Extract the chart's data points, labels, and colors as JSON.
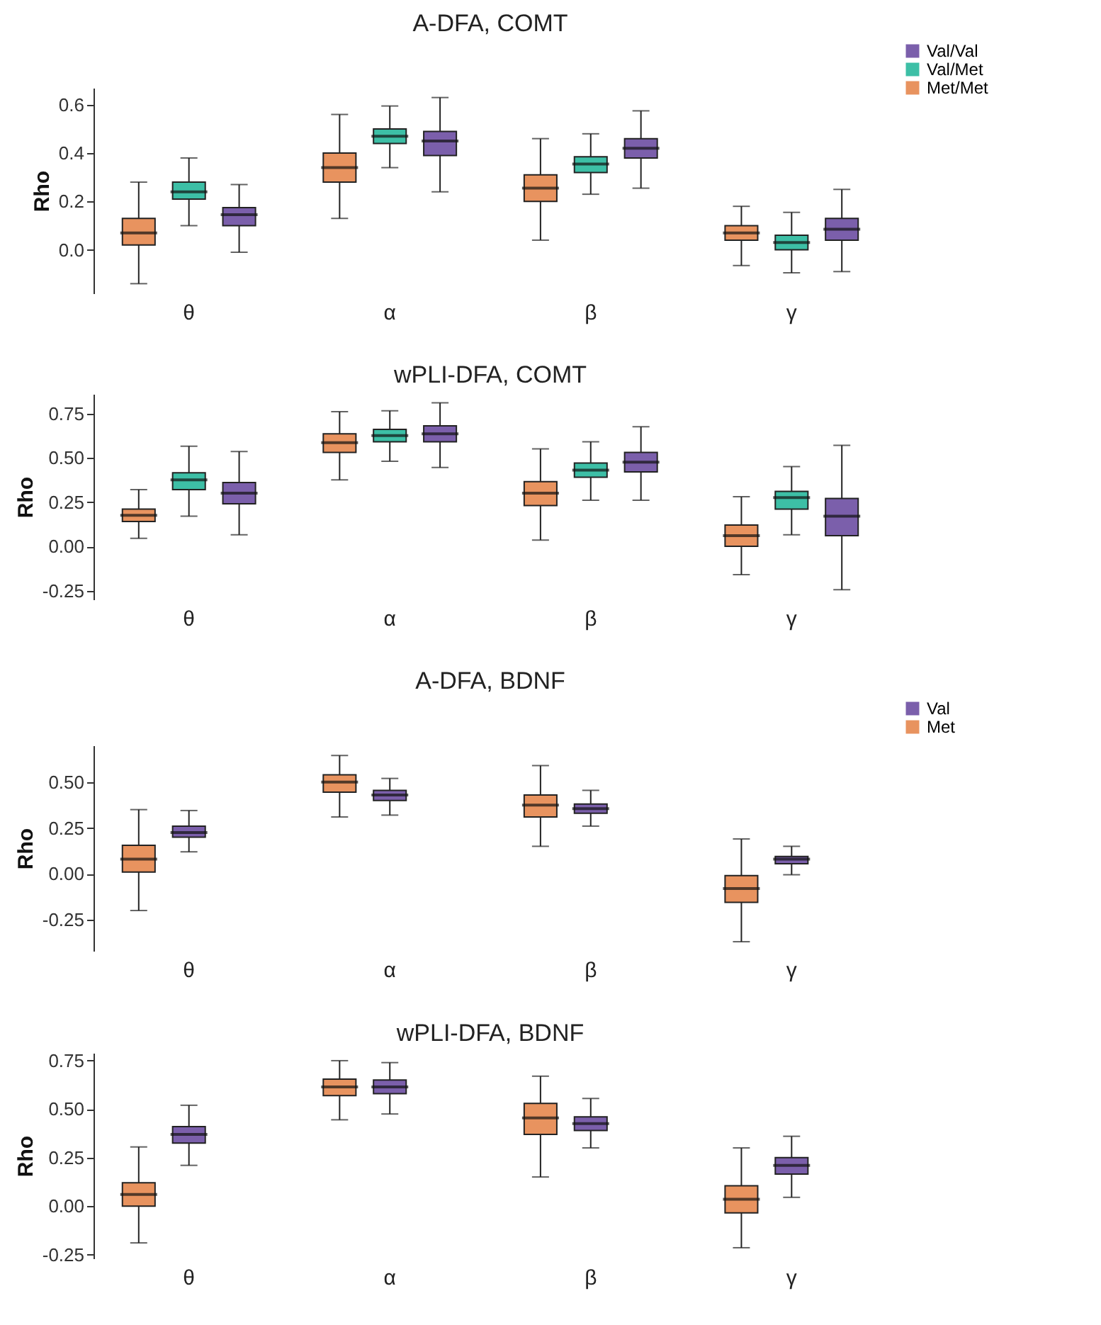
{
  "chart_data": [
    {
      "type": "box",
      "title": "A-DFA, COMT",
      "ylabel": "Rho",
      "categories": [
        "θ",
        "α",
        "β",
        "γ"
      ],
      "ylim": [
        -0.18,
        0.67
      ],
      "yticks": [
        {
          "value": 0,
          "label": "0.0"
        },
        0.2,
        0.4,
        0.6
      ],
      "legend": "top right",
      "series": [
        {
          "name": "Met/Met",
          "color": "#e8935f",
          "boxes": [
            {
              "low": -0.14,
              "q1": 0.02,
              "median": 0.07,
              "q3": 0.13,
              "high": 0.28
            },
            {
              "low": 0.13,
              "q1": 0.28,
              "median": 0.34,
              "q3": 0.4,
              "high": 0.56
            },
            {
              "low": 0.04,
              "q1": 0.2,
              "median": 0.255,
              "q3": 0.31,
              "high": 0.46
            },
            {
              "low": -0.065,
              "q1": 0.04,
              "median": 0.07,
              "q3": 0.1,
              "high": 0.18
            }
          ]
        },
        {
          "name": "Val/Met",
          "color": "#3dbfa6",
          "boxes": [
            {
              "low": 0.1,
              "q1": 0.21,
              "median": 0.24,
              "q3": 0.28,
              "high": 0.38
            },
            {
              "low": 0.34,
              "q1": 0.44,
              "median": 0.47,
              "q3": 0.5,
              "high": 0.595
            },
            {
              "low": 0.23,
              "q1": 0.32,
              "median": 0.355,
              "q3": 0.385,
              "high": 0.48
            },
            {
              "low": -0.095,
              "q1": 0.0,
              "median": 0.03,
              "q3": 0.06,
              "high": 0.155
            }
          ]
        },
        {
          "name": "Val/Val",
          "color": "#7b5fab",
          "boxes": [
            {
              "low": -0.01,
              "q1": 0.1,
              "median": 0.145,
              "q3": 0.175,
              "high": 0.27
            },
            {
              "low": 0.24,
              "q1": 0.39,
              "median": 0.45,
              "q3": 0.49,
              "high": 0.63
            },
            {
              "low": 0.255,
              "q1": 0.38,
              "median": 0.42,
              "q3": 0.46,
              "high": 0.575
            },
            {
              "low": -0.09,
              "q1": 0.04,
              "median": 0.085,
              "q3": 0.13,
              "high": 0.25
            }
          ]
        }
      ]
    },
    {
      "type": "box",
      "title": "wPLI-DFA, COMT",
      "ylabel": "Rho",
      "categories": [
        "θ",
        "α",
        "β",
        "γ"
      ],
      "ylim": [
        -0.3,
        0.86
      ],
      "yticks": [
        {
          "value": -0.25,
          "label": "-0.25"
        },
        {
          "value": 0,
          "label": "0.00"
        },
        0.25,
        {
          "value": 0.5,
          "label": "0.50"
        },
        0.75
      ],
      "series": [
        {
          "color": "#e8935f",
          "boxes": [
            {
              "low": 0.045,
              "q1": 0.14,
              "median": 0.175,
              "q3": 0.21,
              "high": 0.32
            },
            {
              "low": 0.375,
              "q1": 0.53,
              "median": 0.585,
              "q3": 0.635,
              "high": 0.76
            },
            {
              "low": 0.035,
              "q1": 0.23,
              "median": 0.3,
              "q3": 0.365,
              "high": 0.55
            },
            {
              "low": -0.16,
              "q1": 0.0,
              "median": 0.06,
              "q3": 0.12,
              "high": 0.28
            }
          ]
        },
        {
          "color": "#3dbfa6",
          "boxes": [
            {
              "low": 0.17,
              "q1": 0.32,
              "median": 0.375,
              "q3": 0.415,
              "high": 0.565
            },
            {
              "low": 0.48,
              "q1": 0.59,
              "median": 0.625,
              "q3": 0.66,
              "high": 0.765
            },
            {
              "low": 0.26,
              "q1": 0.39,
              "median": 0.43,
              "q3": 0.47,
              "high": 0.59
            },
            {
              "low": 0.065,
              "q1": 0.21,
              "median": 0.275,
              "q3": 0.31,
              "high": 0.45
            }
          ]
        },
        {
          "color": "#7b5fab",
          "boxes": [
            {
              "low": 0.065,
              "q1": 0.24,
              "median": 0.3,
              "q3": 0.36,
              "high": 0.535
            },
            {
              "low": 0.445,
              "q1": 0.59,
              "median": 0.635,
              "q3": 0.68,
              "high": 0.81
            },
            {
              "low": 0.26,
              "q1": 0.42,
              "median": 0.475,
              "q3": 0.53,
              "high": 0.675
            },
            {
              "low": -0.245,
              "q1": 0.06,
              "median": 0.17,
              "q3": 0.27,
              "high": 0.57
            }
          ]
        }
      ]
    },
    {
      "type": "box",
      "title": "A-DFA, BDNF",
      "ylabel": "Rho",
      "categories": [
        "θ",
        "α",
        "β",
        "γ"
      ],
      "ylim": [
        -0.42,
        0.7
      ],
      "yticks": [
        {
          "value": -0.25,
          "label": "-0.25"
        },
        {
          "value": 0,
          "label": "0.00"
        },
        0.25,
        {
          "value": 0.5,
          "label": "0.50"
        }
      ],
      "legend": "top right",
      "series": [
        {
          "name": "Met",
          "color": "#e8935f",
          "boxes": [
            {
              "low": -0.2,
              "q1": 0.01,
              "median": 0.08,
              "q3": 0.155,
              "high": 0.35
            },
            {
              "low": 0.31,
              "q1": 0.445,
              "median": 0.5,
              "q3": 0.54,
              "high": 0.645
            },
            {
              "low": 0.15,
              "q1": 0.31,
              "median": 0.375,
              "q3": 0.43,
              "high": 0.59
            },
            {
              "low": -0.37,
              "q1": -0.155,
              "median": -0.08,
              "q3": -0.01,
              "high": 0.19
            }
          ]
        },
        {
          "name": "Val",
          "color": "#7b5fab",
          "boxes": [
            {
              "low": 0.12,
              "q1": 0.2,
              "median": 0.225,
              "q3": 0.26,
              "high": 0.345
            },
            {
              "low": 0.32,
              "q1": 0.4,
              "median": 0.43,
              "q3": 0.455,
              "high": 0.52
            },
            {
              "low": 0.26,
              "q1": 0.33,
              "median": 0.355,
              "q3": 0.38,
              "high": 0.455
            },
            {
              "low": -0.005,
              "q1": 0.055,
              "median": 0.08,
              "q3": 0.095,
              "high": 0.15
            }
          ]
        }
      ]
    },
    {
      "type": "box",
      "title": "wPLI-DFA, BDNF",
      "ylabel": "Rho",
      "categories": [
        "θ",
        "α",
        "β",
        "γ"
      ],
      "ylim": [
        -0.27,
        0.79
      ],
      "yticks": [
        {
          "value": -0.25,
          "label": "-0.25"
        },
        {
          "value": 0,
          "label": "0.00"
        },
        0.25,
        {
          "value": 0.5,
          "label": "0.50"
        },
        0.75
      ],
      "series": [
        {
          "color": "#e8935f",
          "boxes": [
            {
              "low": -0.19,
              "q1": 0.0,
              "median": 0.06,
              "q3": 0.12,
              "high": 0.305
            },
            {
              "low": 0.445,
              "q1": 0.57,
              "median": 0.615,
              "q3": 0.655,
              "high": 0.75
            },
            {
              "low": 0.15,
              "q1": 0.37,
              "median": 0.455,
              "q3": 0.53,
              "high": 0.67
            },
            {
              "low": -0.215,
              "q1": -0.035,
              "median": 0.035,
              "q3": 0.105,
              "high": 0.3
            }
          ]
        },
        {
          "color": "#7b5fab",
          "boxes": [
            {
              "low": 0.21,
              "q1": 0.325,
              "median": 0.37,
              "q3": 0.41,
              "high": 0.52
            },
            {
              "low": 0.475,
              "q1": 0.58,
              "median": 0.615,
              "q3": 0.65,
              "high": 0.74
            },
            {
              "low": 0.3,
              "q1": 0.39,
              "median": 0.425,
              "q3": 0.46,
              "high": 0.555
            },
            {
              "low": 0.045,
              "q1": 0.165,
              "median": 0.21,
              "q3": 0.25,
              "high": 0.36
            }
          ]
        }
      ]
    }
  ]
}
